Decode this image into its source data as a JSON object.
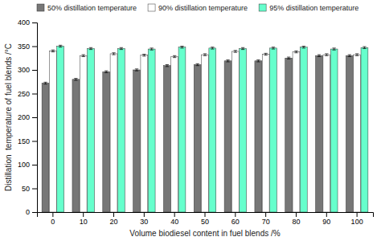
{
  "chart_data": {
    "type": "bar",
    "categories": [
      "0",
      "10",
      "20",
      "30",
      "40",
      "50",
      "60",
      "70",
      "80",
      "90",
      "100"
    ],
    "series": [
      {
        "name": "50% distillation temperature",
        "color": "#777777",
        "values": [
          272,
          280,
          296,
          300,
          309,
          311,
          319,
          319,
          325,
          330,
          330
        ],
        "errors": [
          2,
          2,
          2,
          2,
          2,
          2,
          2,
          2,
          2,
          2,
          2
        ]
      },
      {
        "name": "90% distillation temperature",
        "color": "#ffffff",
        "values": [
          340,
          330,
          334,
          331,
          328,
          332,
          339,
          333,
          338,
          332,
          332
        ],
        "errors": [
          2,
          2,
          2,
          2,
          2,
          2,
          2,
          2,
          2,
          2,
          2
        ]
      },
      {
        "name": "95% distillation temperature",
        "color": "#66ffcc",
        "values": [
          350,
          345,
          345,
          344,
          348,
          346,
          345,
          346,
          348,
          344,
          347
        ],
        "errors": [
          2,
          2,
          2,
          2,
          2,
          2,
          2,
          2,
          2,
          2,
          2
        ]
      }
    ],
    "xlabel": "Volume biodiesel content in fuel blends /%",
    "ylabel": "Distillation  temperature of fuel blends /°C",
    "ylim": [
      0,
      400
    ],
    "yticks": [
      0,
      50,
      100,
      150,
      200,
      250,
      300,
      350,
      400
    ],
    "legend": "upper left",
    "grid": false
  }
}
